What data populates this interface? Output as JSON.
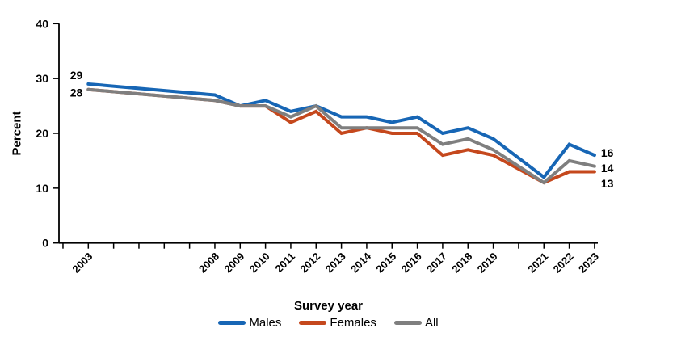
{
  "chart_data": {
    "type": "line",
    "title": "",
    "xlabel": "Survey year",
    "ylabel": "Percent",
    "ylim": [
      0,
      40
    ],
    "ytick_labels": [
      "0",
      "10",
      "20",
      "30",
      "40"
    ],
    "yticks": [
      0,
      10,
      20,
      30,
      40
    ],
    "grid": false,
    "axis_color": "#000000",
    "xtick_marks_every_year_from": 2002,
    "xtick_marks_every_year_to": 2023,
    "categories": [
      "2003",
      "2008",
      "2009",
      "2010",
      "2011",
      "2012",
      "2013",
      "2014",
      "2015",
      "2016",
      "2017",
      "2018",
      "2019",
      "2021",
      "2022",
      "2023"
    ],
    "x_tick_labels": [
      "2003",
      "2008",
      "2009",
      "2010",
      "2011",
      "2012",
      "2013",
      "2014",
      "2015",
      "2016",
      "2017",
      "2018",
      "2019",
      "2021",
      "2022",
      "2023"
    ],
    "series": [
      {
        "name": "Males",
        "color": "#1766B5",
        "values": [
          29,
          27,
          25,
          26,
          24,
          25,
          23,
          23,
          22,
          23,
          20,
          21,
          19,
          12,
          18,
          16
        ],
        "first_point_label": "29",
        "last_point_label": "16"
      },
      {
        "name": "Females",
        "color": "#C5481D",
        "values": [
          28,
          26,
          25,
          25,
          22,
          24,
          20,
          21,
          20,
          20,
          16,
          17,
          16,
          11,
          13,
          13
        ],
        "first_point_label": "28",
        "last_point_label": "13"
      },
      {
        "name": "All",
        "color": "#7F7F7F",
        "values": [
          28,
          26,
          25,
          25,
          23,
          25,
          21,
          21,
          21,
          21,
          18,
          19,
          17,
          11,
          15,
          14
        ],
        "first_point_label": "",
        "last_point_label": "14"
      }
    ],
    "legend": {
      "position": "bottom"
    }
  }
}
